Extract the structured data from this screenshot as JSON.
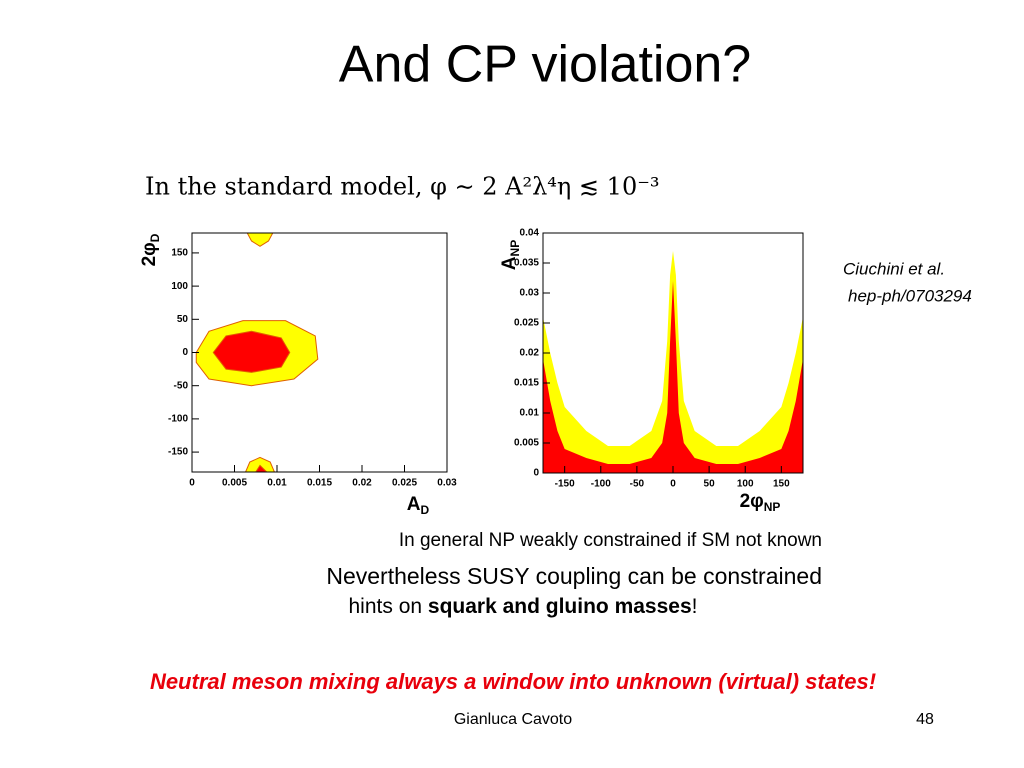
{
  "title": "And CP violation?",
  "formula": "In the standard model, φ ∼ 2 A²λ⁴η ≲ 10⁻³",
  "citation": [
    "Ciuchini et al.",
    "hep-ph/0703294"
  ],
  "notes": {
    "line1": "In general NP weakly constrained if SM not known",
    "line2": "Nevertheless SUSY coupling can be constrained",
    "line3_pre": "hints on ",
    "line3_bold": "squark and gluino  masses",
    "line3_post": "!"
  },
  "conclusion": "Neutral meson mixing always a window into unknown (virtual) states!",
  "footer": {
    "author": "Gianluca Cavoto",
    "page": "48"
  },
  "chart_data": [
    {
      "type": "contour",
      "xlabel": "A",
      "xlabel_sub": "D",
      "ylabel": "2φ",
      "ylabel_sub": "D",
      "xlim": [
        0,
        0.03
      ],
      "ylim": [
        -180,
        180
      ],
      "xticks": [
        0,
        0.005,
        0.01,
        0.015,
        0.02,
        0.025,
        0.03
      ],
      "yticks": [
        -150,
        -100,
        -50,
        0,
        50,
        100,
        150
      ],
      "regions": [
        {
          "color": "#ffff00",
          "x": [
            0.0005,
            0.002,
            0.006,
            0.011,
            0.0145,
            0.0148,
            0.012,
            0.007,
            0.002,
            0.0005
          ],
          "y": [
            0,
            32,
            48,
            48,
            25,
            -10,
            -40,
            -50,
            -40,
            -15
          ]
        },
        {
          "color": "#ff0000",
          "x": [
            0.0025,
            0.004,
            0.007,
            0.0105,
            0.0115,
            0.0105,
            0.007,
            0.004
          ],
          "y": [
            0,
            25,
            32,
            22,
            0,
            -22,
            -30,
            -25
          ]
        },
        {
          "color": "#ffff00",
          "x": [
            0.0065,
            0.007,
            0.008,
            0.009,
            0.0095
          ],
          "y": [
            180,
            168,
            160,
            168,
            180
          ]
        },
        {
          "color": "#ffff00",
          "x": [
            0.0063,
            0.0068,
            0.008,
            0.0092,
            0.0097
          ],
          "y": [
            -180,
            -165,
            -158,
            -165,
            -180
          ]
        },
        {
          "color": "#ff0000",
          "x": [
            0.0075,
            0.008,
            0.0088
          ],
          "y": [
            -180,
            -170,
            -180
          ]
        }
      ]
    },
    {
      "type": "area",
      "xlabel": "2φ",
      "xlabel_sub": "NP",
      "ylabel": "A",
      "ylabel_sub": "NP",
      "xlim": [
        -180,
        180
      ],
      "ylim": [
        0,
        0.04
      ],
      "xticks": [
        -150,
        -100,
        -50,
        0,
        50,
        100,
        150
      ],
      "yticks": [
        0,
        0.005,
        0.01,
        0.015,
        0.02,
        0.025,
        0.03,
        0.035,
        0.04
      ],
      "x": [
        -180,
        -170,
        -160,
        -150,
        -120,
        -90,
        -60,
        -30,
        -15,
        -8,
        -4,
        0,
        4,
        8,
        15,
        30,
        60,
        90,
        120,
        150,
        160,
        170,
        180
      ],
      "series": [
        {
          "color": "#ffff00",
          "values": [
            0.026,
            0.02,
            0.015,
            0.011,
            0.007,
            0.0045,
            0.0045,
            0.007,
            0.012,
            0.022,
            0.033,
            0.037,
            0.033,
            0.022,
            0.012,
            0.007,
            0.0045,
            0.0045,
            0.007,
            0.011,
            0.015,
            0.02,
            0.026
          ]
        },
        {
          "color": "#ff0000",
          "values": [
            0.019,
            0.012,
            0.007,
            0.004,
            0.0025,
            0.0015,
            0.0015,
            0.0025,
            0.005,
            0.01,
            0.022,
            0.032,
            0.022,
            0.01,
            0.005,
            0.0025,
            0.0015,
            0.0015,
            0.0025,
            0.004,
            0.007,
            0.012,
            0.019
          ]
        }
      ]
    }
  ]
}
